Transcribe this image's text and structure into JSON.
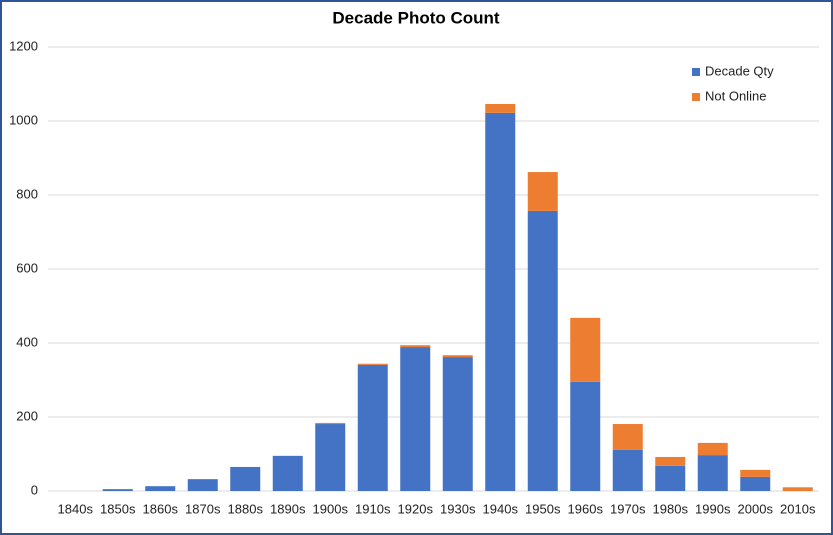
{
  "chart_data": {
    "type": "bar",
    "stacked": true,
    "title": "Decade Photo Count",
    "categories": [
      "1840s",
      "1850s",
      "1860s",
      "1870s",
      "1880s",
      "1890s",
      "1900s",
      "1910s",
      "1920s",
      "1930s",
      "1940s",
      "1950s",
      "1960s",
      "1970s",
      "1980s",
      "1990s",
      "2000s",
      "2010s"
    ],
    "series": [
      {
        "name": "Decade Qty",
        "color": "#4472c4",
        "values": [
          0,
          5,
          13,
          32,
          65,
          95,
          181,
          341,
          389,
          362,
          1022,
          757,
          295,
          111,
          68,
          97,
          38,
          0
        ]
      },
      {
        "name": "Not Online",
        "color": "#ed7d31",
        "values": [
          0,
          0,
          0,
          0,
          0,
          0,
          3,
          3,
          5,
          5,
          24,
          105,
          173,
          70,
          24,
          33,
          19,
          10
        ]
      }
    ],
    "ylim": [
      0,
      1200
    ],
    "yticks": [
      0,
      200,
      400,
      600,
      800,
      1000,
      1200
    ],
    "grid": true,
    "legend": "top-right"
  }
}
